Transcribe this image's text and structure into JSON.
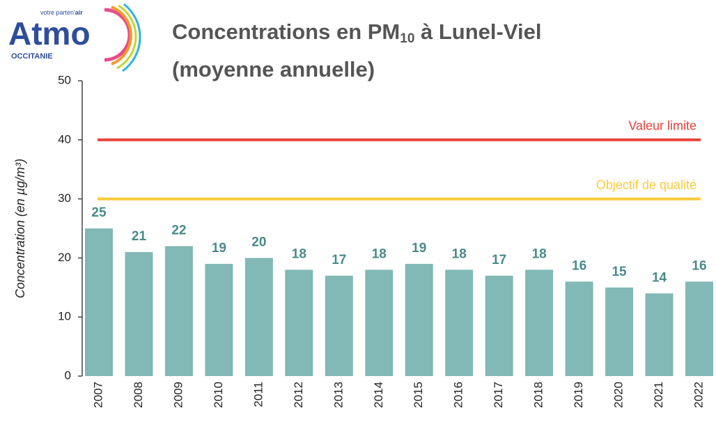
{
  "logo": {
    "name": "Atmo",
    "region": "OCCITANIE",
    "tagline": "votre parten'",
    "tagline_bold": "air"
  },
  "chart_data": {
    "type": "bar",
    "title": {
      "text": "Concentrations en PM",
      "subscript": "10",
      "rest": " à Lunel-Viel",
      "line2": "(moyenne annuelle)"
    },
    "y_label": "Concentration (en µg/m³)",
    "categories": [
      "2007",
      "2008",
      "2009",
      "2010",
      "2011",
      "2012",
      "2013",
      "2014",
      "2015",
      "2016",
      "2017",
      "2018",
      "2019",
      "2020",
      "2021",
      "2022"
    ],
    "values": [
      25,
      21,
      22,
      19,
      20,
      18,
      17,
      18,
      19,
      18,
      17,
      18,
      16,
      15,
      14,
      16
    ],
    "color": "#82b8b6",
    "value_label_color": "#4a8a8a",
    "ylim": [
      0,
      50
    ],
    "yticks": [
      0,
      10,
      20,
      30,
      40,
      50
    ],
    "grid": false,
    "reference_lines": [
      {
        "name": "Valeur limite",
        "value": 40,
        "color": "#e8403a"
      },
      {
        "name": "Objectif de qualité",
        "value": 30,
        "color": "#fbc93a"
      }
    ]
  }
}
